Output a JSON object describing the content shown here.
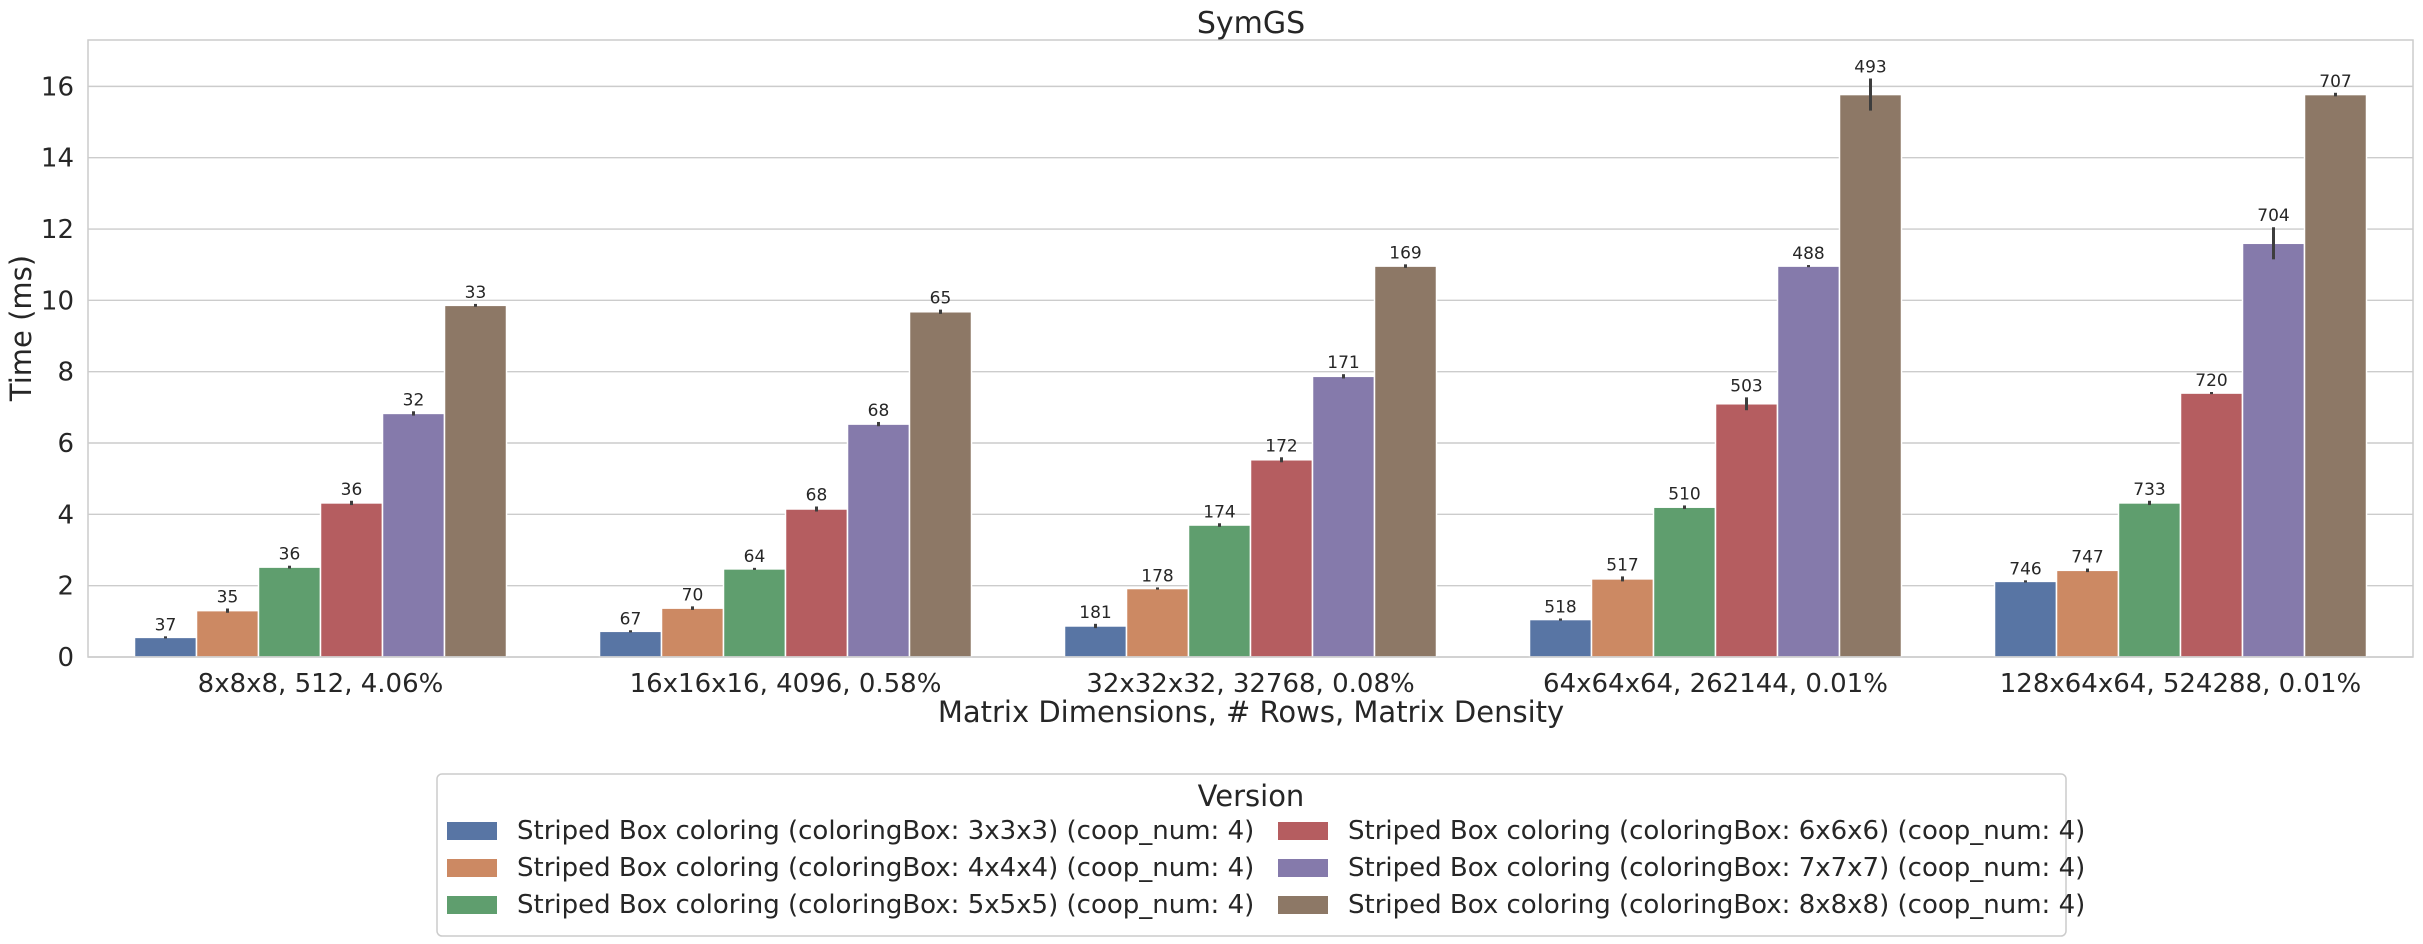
{
  "chart_data": {
    "type": "bar",
    "title": "SymGS",
    "xlabel": "Matrix Dimensions, # Rows, Matrix Density",
    "ylabel": "Time (ms)",
    "ylim": [
      0,
      17.3
    ],
    "yticks": [
      0,
      2,
      4,
      6,
      8,
      10,
      12,
      14,
      16
    ],
    "grid": true,
    "categories": [
      "8x8x8, 512, 4.06%",
      "16x16x16, 4096, 0.58%",
      "32x32x32, 32768, 0.08%",
      "64x64x64, 262144, 0.01%",
      "128x64x64, 524288, 0.01%"
    ],
    "legend": {
      "title": "Version",
      "placement": "bottom-center",
      "columns": 2
    },
    "series": [
      {
        "name": "Striped Box coloring (coloringBox: 3x3x3) (coop_num: 4)",
        "color": "#5875a4",
        "values": [
          0.55,
          0.72,
          0.87,
          1.05,
          2.12
        ],
        "errors": [
          0.03,
          0.03,
          0.06,
          0.03,
          0.03
        ],
        "labels": [
          "37",
          "67",
          "181",
          "518",
          "746"
        ]
      },
      {
        "name": "Striped Box coloring (coloringBox: 4x4x4) (coop_num: 4)",
        "color": "#cc8963",
        "values": [
          1.3,
          1.37,
          1.92,
          2.19,
          2.43
        ],
        "errors": [
          0.06,
          0.05,
          0.03,
          0.07,
          0.05
        ],
        "labels": [
          "35",
          "70",
          "178",
          "517",
          "747"
        ]
      },
      {
        "name": "Striped Box coloring (coloringBox: 5x5x5) (coop_num: 4)",
        "color": "#5f9e6e",
        "values": [
          2.52,
          2.47,
          3.7,
          4.2,
          4.32
        ],
        "errors": [
          0.04,
          0.03,
          0.05,
          0.05,
          0.06
        ],
        "labels": [
          "36",
          "64",
          "174",
          "510",
          "733"
        ]
      },
      {
        "name": "Striped Box coloring (coloringBox: 6x6x6) (coop_num: 4)",
        "color": "#b55d60",
        "values": [
          4.32,
          4.15,
          5.53,
          7.1,
          7.4
        ],
        "errors": [
          0.06,
          0.07,
          0.07,
          0.18,
          0.03
        ],
        "labels": [
          "36",
          "68",
          "172",
          "503",
          "720"
        ]
      },
      {
        "name": "Striped Box coloring (coloringBox: 7x7x7) (coop_num: 4)",
        "color": "#857aab",
        "values": [
          6.83,
          6.53,
          7.87,
          10.96,
          11.6
        ],
        "errors": [
          0.06,
          0.06,
          0.06,
          0.03,
          0.45
        ],
        "labels": [
          "32",
          "68",
          "171",
          "488",
          "704"
        ]
      },
      {
        "name": "Striped Box coloring (coloringBox: 8x8x8) (coop_num: 4)",
        "color": "#8d7866",
        "values": [
          9.86,
          9.68,
          10.96,
          15.77,
          15.77
        ],
        "errors": [
          0.04,
          0.06,
          0.05,
          0.45,
          0.05
        ],
        "labels": [
          "33",
          "65",
          "169",
          "493",
          "707"
        ]
      }
    ]
  }
}
